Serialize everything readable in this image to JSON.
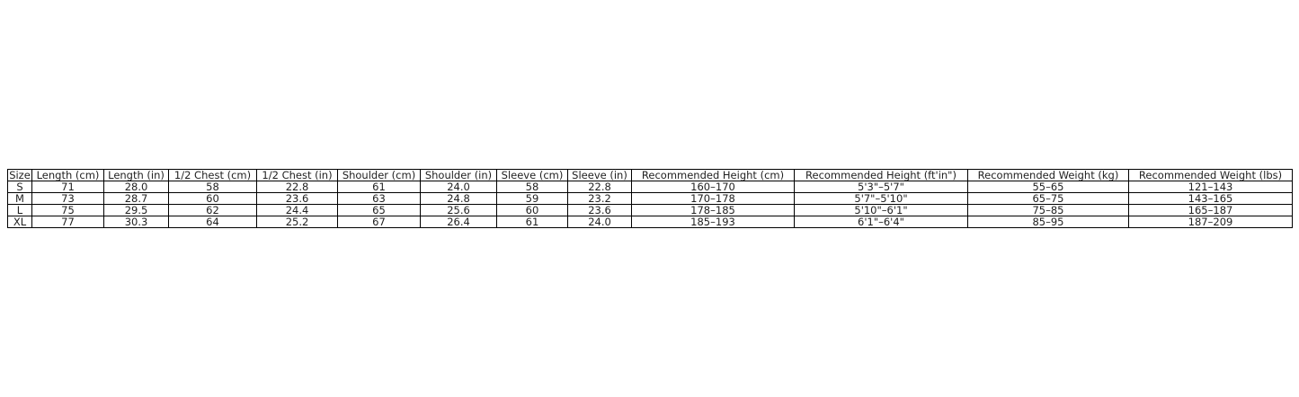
{
  "chart_data": {
    "type": "table",
    "columns": [
      "Size",
      "Length (cm)",
      "Length (in)",
      "1/2 Chest (cm)",
      "1/2 Chest (in)",
      "Shoulder (cm)",
      "Shoulder (in)",
      "Sleeve (cm)",
      "Sleeve (in)",
      "Recommended Height (cm)",
      "Recommended Height (ft'in\")",
      "Recommended Weight (kg)",
      "Recommended Weight (lbs)"
    ],
    "rows": [
      [
        "S",
        "71",
        "28.0",
        "58",
        "22.8",
        "61",
        "24.0",
        "58",
        "22.8",
        "160–170",
        "5'3\"–5'7\"",
        "55–65",
        "121–143"
      ],
      [
        "M",
        "73",
        "28.7",
        "60",
        "23.6",
        "63",
        "24.8",
        "59",
        "23.2",
        "170–178",
        "5'7\"–5'10\"",
        "65–75",
        "143–165"
      ],
      [
        "L",
        "75",
        "29.5",
        "62",
        "24.4",
        "65",
        "25.6",
        "60",
        "23.6",
        "178–185",
        "5'10\"–6'1\"",
        "75–85",
        "165–187"
      ],
      [
        "XL",
        "77",
        "30.3",
        "64",
        "25.2",
        "67",
        "26.4",
        "61",
        "24.0",
        "185–193",
        "6'1\"–6'4\"",
        "85–95",
        "187–209"
      ]
    ]
  }
}
